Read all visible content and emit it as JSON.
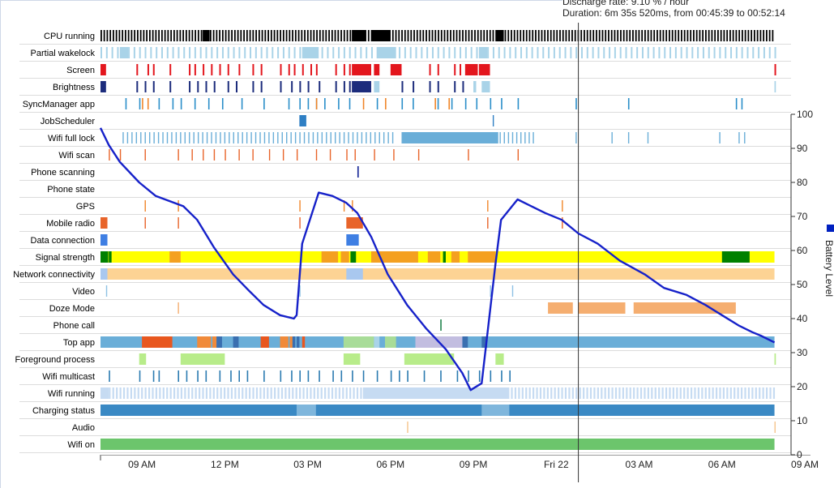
{
  "tooltip": {
    "line1": "Discharge rate: 9.10 % / hour",
    "line2": "Duration: 6m 35s 520ms, from 00:45:39 to 00:52:14"
  },
  "chart_data": {
    "type": "timeline",
    "rows": [
      "CPU running",
      "Partial wakelock",
      "Screen",
      "Brightness",
      "SyncManager app",
      "JobScheduler",
      "Wifi full lock",
      "Wifi scan",
      "Phone scanning",
      "Phone state",
      "GPS",
      "Mobile radio",
      "Data connection",
      "Signal strength",
      "Network connectivity",
      "Video",
      "Doze Mode",
      "Phone call",
      "Top app",
      "Foreground process",
      "Wifi multicast",
      "Wifi running",
      "Charging status",
      "Audio",
      "Wifi on"
    ],
    "x_ticks": [
      "09 AM",
      "12 PM",
      "03 PM",
      "06 PM",
      "09 PM",
      "Fri 22",
      "03 AM",
      "06 AM",
      "09 AM"
    ],
    "x_range_hours": [
      7.5,
      32.5
    ],
    "y_ticks": [
      0,
      10,
      20,
      30,
      40,
      50,
      60,
      70,
      80,
      90,
      100
    ],
    "y_range": [
      0,
      100
    ],
    "y_axis_label": "Battery Level",
    "cursor_hour": 24.8,
    "battery_level": {
      "x_hours": [
        7.5,
        7.8,
        8.2,
        8.9,
        9.5,
        10.5,
        11.0,
        11.6,
        12.3,
        12.9,
        13.4,
        14.0,
        14.5,
        14.6,
        14.8,
        15.4,
        15.9,
        16.4,
        16.8,
        17.3,
        17.9,
        18.6,
        19.3,
        20.0,
        20.6,
        20.9,
        21.3,
        21.8,
        22.0,
        22.6,
        23.1,
        23.6,
        24.2,
        24.8,
        25.5,
        26.3,
        27.2,
        27.9,
        28.7,
        29.4,
        30.0,
        30.6,
        31.1,
        31.4,
        31.9
      ],
      "y_percent": [
        96,
        91,
        86,
        80,
        76,
        73,
        69,
        61,
        53,
        48,
        44,
        41,
        40,
        41,
        62,
        77,
        76,
        74,
        71,
        64,
        53,
        44,
        37,
        31,
        24,
        19,
        21,
        56,
        69,
        75,
        73,
        71,
        69,
        65,
        62,
        57,
        53,
        49,
        47,
        44,
        41,
        38,
        36,
        35,
        33
      ]
    },
    "colors": {
      "cpu": "#000000",
      "wakelock": "#a9d3e8",
      "screen": "#e3161d",
      "brightness": "#1c2c7c",
      "sync": "#2a8ec9",
      "sync_alt": "#f0862a",
      "job": "#2f7fc4",
      "wifi_lock": "#6aaed8",
      "wifi_scan": "#e8642a",
      "phone_scan": "#1c2c99",
      "gps": "#f0862a",
      "mobile_radio": "#e8642a",
      "data": "#3f7fe3",
      "sig_yellow": "#ffff00",
      "sig_orange": "#f4a020",
      "sig_green": "#008000",
      "net": "#fdd394",
      "net_alt": "#a9c8ef",
      "video": "#8ec1e4",
      "doze": "#f5ae70",
      "call": "#2e8b57",
      "top": "#6aaed8",
      "fg": "#b8ec8a",
      "multicast": "#2a7ab0",
      "wifi_run": "#c6dbf2",
      "charging": "#3a89c4",
      "charging_alt": "#7fb6dc",
      "audio": "#f5c48a",
      "wifi_on": "#6cc56c",
      "line": "#1621c9"
    }
  }
}
